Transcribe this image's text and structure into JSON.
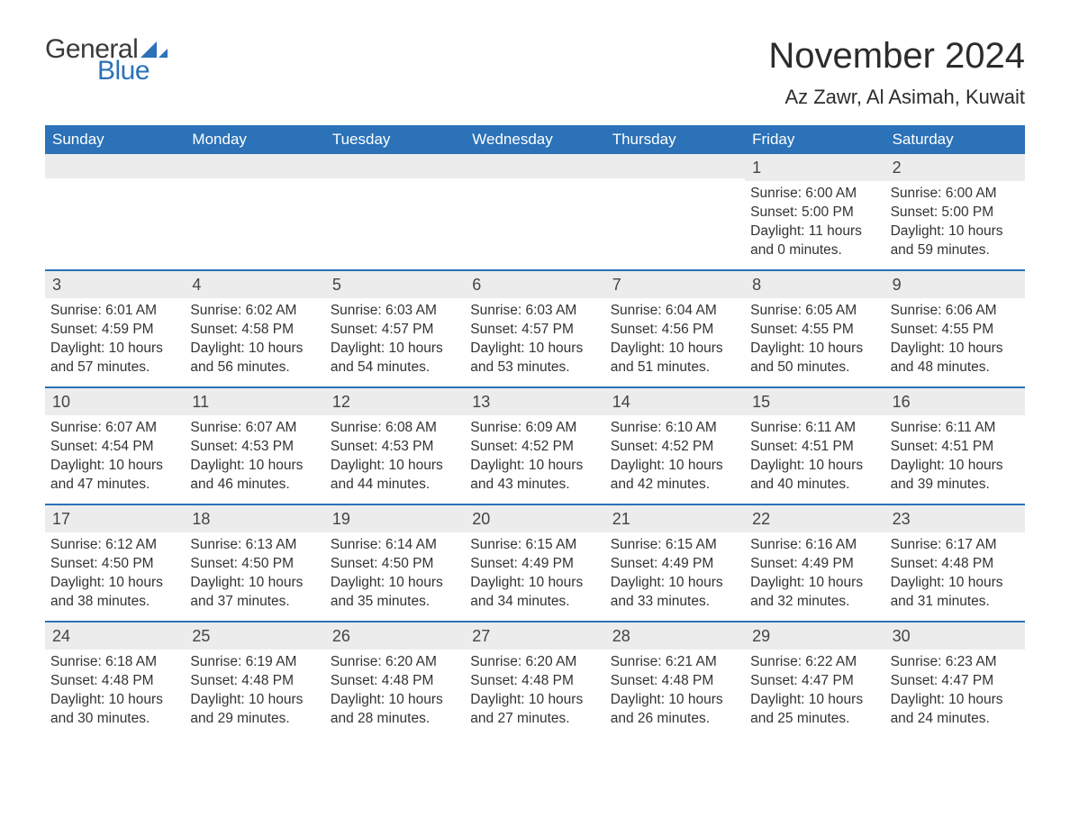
{
  "logo": {
    "general": "General",
    "blue": "Blue",
    "accent_color": "#2b72b8"
  },
  "title": "November 2024",
  "location": "Az Zawr, Al Asimah, Kuwait",
  "colors": {
    "header_bg": "#2b72b8",
    "header_text": "#ffffff",
    "strip_bg": "#ececec",
    "row_border": "#2b72b8",
    "text": "#333333",
    "background": "#ffffff"
  },
  "typography": {
    "title_fontsize": 40,
    "location_fontsize": 22,
    "weekday_fontsize": 17,
    "cell_fontsize": 15.5
  },
  "weekdays": [
    "Sunday",
    "Monday",
    "Tuesday",
    "Wednesday",
    "Thursday",
    "Friday",
    "Saturday"
  ],
  "weeks": [
    [
      {
        "empty": true
      },
      {
        "empty": true
      },
      {
        "empty": true
      },
      {
        "empty": true
      },
      {
        "empty": true
      },
      {
        "day": "1",
        "sunrise": "Sunrise: 6:00 AM",
        "sunset": "Sunset: 5:00 PM",
        "daylight1": "Daylight: 11 hours",
        "daylight2": "and 0 minutes."
      },
      {
        "day": "2",
        "sunrise": "Sunrise: 6:00 AM",
        "sunset": "Sunset: 5:00 PM",
        "daylight1": "Daylight: 10 hours",
        "daylight2": "and 59 minutes."
      }
    ],
    [
      {
        "day": "3",
        "sunrise": "Sunrise: 6:01 AM",
        "sunset": "Sunset: 4:59 PM",
        "daylight1": "Daylight: 10 hours",
        "daylight2": "and 57 minutes."
      },
      {
        "day": "4",
        "sunrise": "Sunrise: 6:02 AM",
        "sunset": "Sunset: 4:58 PM",
        "daylight1": "Daylight: 10 hours",
        "daylight2": "and 56 minutes."
      },
      {
        "day": "5",
        "sunrise": "Sunrise: 6:03 AM",
        "sunset": "Sunset: 4:57 PM",
        "daylight1": "Daylight: 10 hours",
        "daylight2": "and 54 minutes."
      },
      {
        "day": "6",
        "sunrise": "Sunrise: 6:03 AM",
        "sunset": "Sunset: 4:57 PM",
        "daylight1": "Daylight: 10 hours",
        "daylight2": "and 53 minutes."
      },
      {
        "day": "7",
        "sunrise": "Sunrise: 6:04 AM",
        "sunset": "Sunset: 4:56 PM",
        "daylight1": "Daylight: 10 hours",
        "daylight2": "and 51 minutes."
      },
      {
        "day": "8",
        "sunrise": "Sunrise: 6:05 AM",
        "sunset": "Sunset: 4:55 PM",
        "daylight1": "Daylight: 10 hours",
        "daylight2": "and 50 minutes."
      },
      {
        "day": "9",
        "sunrise": "Sunrise: 6:06 AM",
        "sunset": "Sunset: 4:55 PM",
        "daylight1": "Daylight: 10 hours",
        "daylight2": "and 48 minutes."
      }
    ],
    [
      {
        "day": "10",
        "sunrise": "Sunrise: 6:07 AM",
        "sunset": "Sunset: 4:54 PM",
        "daylight1": "Daylight: 10 hours",
        "daylight2": "and 47 minutes."
      },
      {
        "day": "11",
        "sunrise": "Sunrise: 6:07 AM",
        "sunset": "Sunset: 4:53 PM",
        "daylight1": "Daylight: 10 hours",
        "daylight2": "and 46 minutes."
      },
      {
        "day": "12",
        "sunrise": "Sunrise: 6:08 AM",
        "sunset": "Sunset: 4:53 PM",
        "daylight1": "Daylight: 10 hours",
        "daylight2": "and 44 minutes."
      },
      {
        "day": "13",
        "sunrise": "Sunrise: 6:09 AM",
        "sunset": "Sunset: 4:52 PM",
        "daylight1": "Daylight: 10 hours",
        "daylight2": "and 43 minutes."
      },
      {
        "day": "14",
        "sunrise": "Sunrise: 6:10 AM",
        "sunset": "Sunset: 4:52 PM",
        "daylight1": "Daylight: 10 hours",
        "daylight2": "and 42 minutes."
      },
      {
        "day": "15",
        "sunrise": "Sunrise: 6:11 AM",
        "sunset": "Sunset: 4:51 PM",
        "daylight1": "Daylight: 10 hours",
        "daylight2": "and 40 minutes."
      },
      {
        "day": "16",
        "sunrise": "Sunrise: 6:11 AM",
        "sunset": "Sunset: 4:51 PM",
        "daylight1": "Daylight: 10 hours",
        "daylight2": "and 39 minutes."
      }
    ],
    [
      {
        "day": "17",
        "sunrise": "Sunrise: 6:12 AM",
        "sunset": "Sunset: 4:50 PM",
        "daylight1": "Daylight: 10 hours",
        "daylight2": "and 38 minutes."
      },
      {
        "day": "18",
        "sunrise": "Sunrise: 6:13 AM",
        "sunset": "Sunset: 4:50 PM",
        "daylight1": "Daylight: 10 hours",
        "daylight2": "and 37 minutes."
      },
      {
        "day": "19",
        "sunrise": "Sunrise: 6:14 AM",
        "sunset": "Sunset: 4:50 PM",
        "daylight1": "Daylight: 10 hours",
        "daylight2": "and 35 minutes."
      },
      {
        "day": "20",
        "sunrise": "Sunrise: 6:15 AM",
        "sunset": "Sunset: 4:49 PM",
        "daylight1": "Daylight: 10 hours",
        "daylight2": "and 34 minutes."
      },
      {
        "day": "21",
        "sunrise": "Sunrise: 6:15 AM",
        "sunset": "Sunset: 4:49 PM",
        "daylight1": "Daylight: 10 hours",
        "daylight2": "and 33 minutes."
      },
      {
        "day": "22",
        "sunrise": "Sunrise: 6:16 AM",
        "sunset": "Sunset: 4:49 PM",
        "daylight1": "Daylight: 10 hours",
        "daylight2": "and 32 minutes."
      },
      {
        "day": "23",
        "sunrise": "Sunrise: 6:17 AM",
        "sunset": "Sunset: 4:48 PM",
        "daylight1": "Daylight: 10 hours",
        "daylight2": "and 31 minutes."
      }
    ],
    [
      {
        "day": "24",
        "sunrise": "Sunrise: 6:18 AM",
        "sunset": "Sunset: 4:48 PM",
        "daylight1": "Daylight: 10 hours",
        "daylight2": "and 30 minutes."
      },
      {
        "day": "25",
        "sunrise": "Sunrise: 6:19 AM",
        "sunset": "Sunset: 4:48 PM",
        "daylight1": "Daylight: 10 hours",
        "daylight2": "and 29 minutes."
      },
      {
        "day": "26",
        "sunrise": "Sunrise: 6:20 AM",
        "sunset": "Sunset: 4:48 PM",
        "daylight1": "Daylight: 10 hours",
        "daylight2": "and 28 minutes."
      },
      {
        "day": "27",
        "sunrise": "Sunrise: 6:20 AM",
        "sunset": "Sunset: 4:48 PM",
        "daylight1": "Daylight: 10 hours",
        "daylight2": "and 27 minutes."
      },
      {
        "day": "28",
        "sunrise": "Sunrise: 6:21 AM",
        "sunset": "Sunset: 4:48 PM",
        "daylight1": "Daylight: 10 hours",
        "daylight2": "and 26 minutes."
      },
      {
        "day": "29",
        "sunrise": "Sunrise: 6:22 AM",
        "sunset": "Sunset: 4:47 PM",
        "daylight1": "Daylight: 10 hours",
        "daylight2": "and 25 minutes."
      },
      {
        "day": "30",
        "sunrise": "Sunrise: 6:23 AM",
        "sunset": "Sunset: 4:47 PM",
        "daylight1": "Daylight: 10 hours",
        "daylight2": "and 24 minutes."
      }
    ]
  ]
}
